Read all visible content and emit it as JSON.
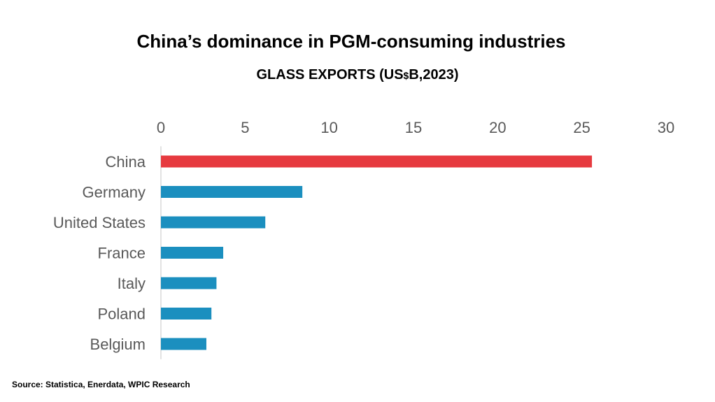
{
  "title": "China’s dominance in PGM-consuming industries",
  "subtitle": {
    "prefix": "GLASS EXPORTS (US",
    "currency": "$",
    "suffix": "B,2023)"
  },
  "source": "Source: Statistica, Enerdata, WPIC Research",
  "colors": {
    "highlight": "#e63a3f",
    "bar": "#1b8fbf",
    "axis": "#d9d9d9",
    "text": "#595959"
  },
  "chart_data": {
    "type": "bar",
    "orientation": "horizontal",
    "title": "GLASS EXPORTS (US$B,2023)",
    "xlabel": "",
    "ylabel": "",
    "xlim": [
      0,
      30
    ],
    "ticks": [
      0,
      5,
      10,
      15,
      20,
      25,
      30
    ],
    "categories": [
      "China",
      "Germany",
      "United States",
      "France",
      "Italy",
      "Poland",
      "Belgium"
    ],
    "values": [
      25.6,
      8.4,
      6.2,
      3.7,
      3.3,
      3.0,
      2.7
    ],
    "highlight": "China",
    "grid": false,
    "axis_position": "top"
  }
}
